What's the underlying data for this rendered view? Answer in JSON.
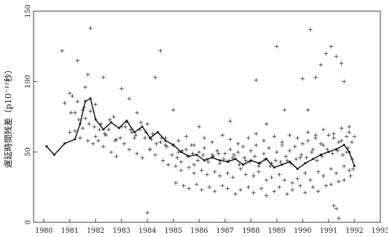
{
  "chart_data": {
    "type": "scatter",
    "ylabel": "遅延時間残差（p10⁻¹²秒）",
    "xlim": [
      1979.6,
      1993.0
    ],
    "ylim": [
      0,
      150
    ],
    "x_ticks": [
      1980,
      1981,
      1982,
      1983,
      1984,
      1985,
      1986,
      1987,
      1988,
      1989,
      1990,
      1991,
      1992,
      1993
    ],
    "y_ticks": [
      0,
      50,
      100,
      150
    ],
    "grid": false,
    "legend": "none",
    "colors": {
      "ink": "#1a1a1a",
      "axis": "#333333"
    },
    "series": [
      {
        "style": "points",
        "marker": "+",
        "x": [
          1980.7,
          1980.8,
          1981.0,
          1981.2,
          1981.3,
          1981.5,
          1981.6,
          1981.7,
          1981.8,
          1982.0,
          1982.3,
          1983.0,
          1983.3,
          1983.6,
          1984.0,
          1984.3,
          1984.5,
          1985.0,
          1986.0,
          1987.2,
          1988.2,
          1988.6,
          1989.0,
          1989.3,
          1990.0,
          1990.2,
          1990.3,
          1990.5,
          1990.7,
          1990.9,
          1991.1,
          1991.3,
          1991.5,
          1991.6,
          1991.8,
          1992.0,
          1981.0,
          1981.4,
          1981.9,
          1982.4,
          1982.8,
          1983.4,
          1983.9,
          1984.1,
          1984.7,
          1985.3,
          1985.8,
          1986.3,
          1986.8,
          1987.3,
          1987.8,
          1988.3,
          1988.8,
          1989.4,
          1989.9,
          1990.4,
          1990.8,
          1991.4,
          1991.7,
          1991.95,
          1981.05,
          1981.35,
          1981.55,
          1981.75,
          1981.95,
          1982.15,
          1982.35,
          1982.55,
          1982.75,
          1982.95,
          1983.15,
          1983.35,
          1983.55,
          1983.75,
          1983.95,
          1984.15,
          1984.35,
          1984.55,
          1984.75,
          1984.95,
          1985.15,
          1985.35,
          1985.55,
          1985.75,
          1985.95,
          1986.15,
          1986.35,
          1986.55,
          1986.75,
          1986.95,
          1987.15,
          1987.35,
          1987.55,
          1987.75,
          1987.95,
          1988.15,
          1988.35,
          1988.55,
          1988.75,
          1988.95,
          1989.15,
          1989.35,
          1989.55,
          1989.75,
          1989.95,
          1990.15,
          1990.35,
          1990.55,
          1990.75,
          1990.95,
          1991.15,
          1991.35,
          1991.55,
          1991.75,
          1991.92,
          1981.1,
          1981.3,
          1981.6,
          1981.8,
          1982.1,
          1982.3,
          1982.6,
          1982.8,
          1983.1,
          1983.3,
          1983.6,
          1983.8,
          1984.1,
          1984.3,
          1984.6,
          1984.8,
          1985.1,
          1985.3,
          1985.6,
          1985.8,
          1986.1,
          1986.3,
          1986.6,
          1986.8,
          1987.1,
          1987.3,
          1987.6,
          1987.8,
          1988.1,
          1988.3,
          1988.6,
          1988.8,
          1989.1,
          1989.3,
          1989.6,
          1989.8,
          1990.1,
          1990.3,
          1990.6,
          1990.8,
          1991.1,
          1991.3,
          1991.6,
          1991.8,
          1981.2,
          1981.5,
          1981.7,
          1982.0,
          1982.2,
          1982.5,
          1982.7,
          1983.0,
          1983.2,
          1983.5,
          1983.7,
          1984.0,
          1984.2,
          1984.5,
          1984.7,
          1985.0,
          1985.2,
          1985.5,
          1985.7,
          1986.0,
          1986.2,
          1986.5,
          1986.7,
          1987.0,
          1987.2,
          1987.5,
          1987.7,
          1988.0,
          1988.2,
          1988.5,
          1988.7,
          1989.0,
          1989.2,
          1989.5,
          1989.7,
          1990.0,
          1990.2,
          1990.5,
          1990.7,
          1991.0,
          1991.2,
          1991.5,
          1991.7,
          1991.9,
          1985.1,
          1985.4,
          1985.6,
          1985.9,
          1986.1,
          1986.4,
          1986.6,
          1986.9,
          1987.1,
          1987.4,
          1987.6,
          1987.9,
          1988.1,
          1988.4,
          1988.6,
          1988.9,
          1989.1,
          1989.4,
          1989.6,
          1989.9,
          1990.1,
          1990.4,
          1990.6,
          1990.9,
          1991.1,
          1991.4,
          1991.6,
          1991.85,
          1985.2,
          1985.5,
          1985.8,
          1986.2,
          1986.5,
          1986.9,
          1987.2,
          1987.5,
          1987.9,
          1988.2,
          1988.5,
          1988.9,
          1989.2,
          1989.5,
          1989.8,
          1990.2,
          1990.5,
          1990.8,
          1991.2,
          1991.5,
          1991.8,
          1991.2,
          1991.3,
          1991.4
        ],
        "y": [
          122,
          85,
          92,
          78,
          115,
          80,
          96,
          105,
          138,
          84,
          103,
          95,
          88,
          78,
          7,
          103,
          122,
          80,
          68,
          72,
          101,
          70,
          125,
          80,
          102,
          80,
          137,
          103,
          112,
          120,
          125,
          118,
          113,
          100,
          68,
          61,
          64,
          60,
          56,
          62,
          59,
          64,
          60,
          52,
          55,
          43,
          41,
          45,
          42,
          46,
          44,
          40,
          42,
          44,
          46,
          52,
          55,
          57,
          50,
          38,
          78,
          73,
          82,
          70,
          68,
          66,
          63,
          73,
          58,
          60,
          68,
          66,
          62,
          71,
          64,
          59,
          56,
          60,
          54,
          48,
          46,
          51,
          47,
          49,
          44,
          48,
          43,
          47,
          49,
          45,
          44,
          48,
          41,
          46,
          43,
          47,
          42,
          45,
          40,
          44,
          43,
          47,
          42,
          45,
          48,
          46,
          50,
          44,
          47,
          52,
          49,
          51,
          48,
          53,
          45,
          90,
          86,
          74,
          79,
          58,
          54,
          50,
          47,
          56,
          52,
          49,
          46,
          52,
          48,
          44,
          41,
          40,
          37,
          39,
          35,
          37,
          34,
          36,
          33,
          35,
          32,
          38,
          34,
          33,
          36,
          30,
          32,
          34,
          30,
          28,
          31,
          35,
          30,
          36,
          33,
          38,
          35,
          40,
          37,
          65,
          67,
          58,
          61,
          70,
          66,
          75,
          68,
          72,
          60,
          66,
          70,
          63,
          57,
          60,
          55,
          50,
          52,
          55,
          50,
          53,
          48,
          51,
          49,
          52,
          50,
          54,
          51,
          55,
          49,
          53,
          50,
          55,
          51,
          54,
          56,
          58,
          60,
          56,
          62,
          60,
          58,
          61,
          57,
          28,
          26,
          24,
          27,
          23,
          25,
          22,
          26,
          24,
          20,
          23,
          25,
          21,
          24,
          19,
          22,
          25,
          20,
          23,
          26,
          21,
          25,
          22,
          26,
          27,
          29,
          30,
          33,
          58,
          61,
          55,
          60,
          57,
          62,
          59,
          56,
          60,
          63,
          58,
          61,
          57,
          62,
          60,
          64,
          62,
          66,
          63,
          67,
          64,
          12,
          10,
          3
        ],
        "data_source": "estimated"
      },
      {
        "style": "line",
        "x": [
          1980.1,
          1980.4,
          1980.8,
          1981.2,
          1981.4,
          1981.6,
          1981.8,
          1982.0,
          1982.3,
          1982.6,
          1982.9,
          1983.2,
          1983.5,
          1983.8,
          1984.1,
          1984.4,
          1984.7,
          1985.0,
          1985.3,
          1985.6,
          1985.9,
          1986.2,
          1986.5,
          1986.8,
          1987.1,
          1987.4,
          1987.7,
          1988.0,
          1988.3,
          1988.6,
          1988.9,
          1989.2,
          1989.5,
          1989.8,
          1990.1,
          1990.4,
          1990.7,
          1991.0,
          1991.3,
          1991.6,
          1991.8,
          1992.0
        ],
        "y": [
          54,
          48,
          56,
          59,
          70,
          86,
          88,
          73,
          66,
          71,
          67,
          72,
          64,
          68,
          60,
          64,
          58,
          55,
          50,
          47,
          48,
          44,
          46,
          44,
          43,
          45,
          41,
          44,
          42,
          45,
          39,
          41,
          43,
          38,
          42,
          45,
          48,
          50,
          52,
          55,
          50,
          40
        ],
        "data_source": "estimated"
      }
    ]
  }
}
